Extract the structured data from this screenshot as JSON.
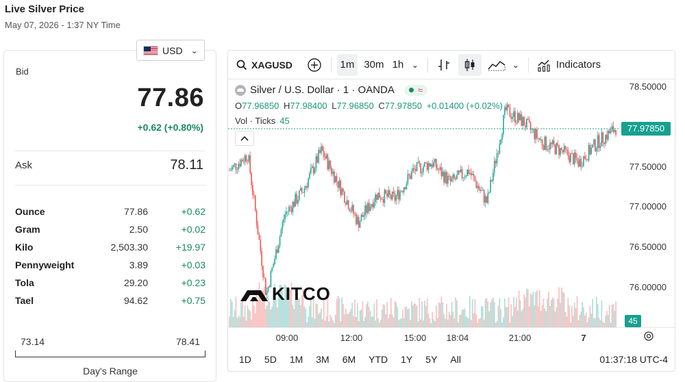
{
  "header": {
    "title": "Live Silver Price",
    "subtitle": "May 07, 2026 - 1:37 NY Time"
  },
  "currency": {
    "selected": "USD",
    "icon": "us-flag-icon"
  },
  "bid": {
    "label": "Bid",
    "value": "77.86",
    "change": "+0.62 (+0.80%)"
  },
  "ask": {
    "label": "Ask",
    "value": "78.11"
  },
  "units": [
    {
      "name": "Ounce",
      "price": "77.86",
      "change": "+0.62"
    },
    {
      "name": "Gram",
      "price": "2.50",
      "change": "+0.02"
    },
    {
      "name": "Kilo",
      "price": "2,503.30",
      "change": "+19.97"
    },
    {
      "name": "Pennyweight",
      "price": "3.89",
      "change": "+0.03"
    },
    {
      "name": "Tola",
      "price": "29.20",
      "change": "+0.23"
    },
    {
      "name": "Tael",
      "price": "94.62",
      "change": "+0.75"
    }
  ],
  "day_range": {
    "low": "73.14",
    "high": "78.41",
    "label": "Day's Range"
  },
  "chart": {
    "toolbar": {
      "symbol": "XAGUSD",
      "intervals": [
        "1m",
        "30m",
        "1h"
      ],
      "active_interval": "1m",
      "indicators_label": "Indicators"
    },
    "legend": {
      "title": "Silver / U.S. Dollar · 1 · OANDA",
      "o_label": "O",
      "o_value": "77.96850",
      "h_label": "H",
      "h_value": "77.98400",
      "l_label": "L",
      "l_value": "77.96850",
      "c_label": "C",
      "c_value": "77.97850",
      "change": "+0.01400 (+0.02%)",
      "vol_label": "Vol · Ticks",
      "vol_value": "45"
    },
    "price_labels": [
      "78.50000",
      "77.50000",
      "77.00000",
      "76.50000",
      "76.00000"
    ],
    "current_price": "77.97850",
    "current_volume": "45",
    "time_labels": [
      "09:00",
      "12:00",
      "15:00",
      "18:04",
      "21:00",
      "7"
    ],
    "ranges": [
      "1D",
      "5D",
      "1M",
      "3M",
      "6M",
      "YTD",
      "1Y",
      "5Y",
      "All"
    ],
    "clock": "01:37:18 UTC-4",
    "watermark": "KITCO",
    "colors": {
      "up": "#26a69a",
      "down": "#ef5350",
      "accent": "#17a090"
    }
  },
  "chart_data": {
    "type": "line",
    "title": "Silver / U.S. Dollar · 1 · OANDA",
    "xlabel": "",
    "ylabel": "",
    "ylim": [
      75.6,
      78.6
    ],
    "x": [
      "07:00",
      "08:00",
      "09:00",
      "10:00",
      "11:00",
      "12:00",
      "13:00",
      "14:00",
      "15:00",
      "16:00",
      "17:00",
      "18:04",
      "19:00",
      "20:00",
      "21:00",
      "21:30",
      "22:00",
      "23:00",
      "00:00",
      "00:30",
      "01:00",
      "01:37"
    ],
    "series": [
      {
        "values": [
          77.45,
          77.65,
          75.9,
          76.9,
          77.2,
          77.7,
          77.25,
          76.8,
          77.15,
          77.1,
          77.45,
          77.55,
          77.3,
          77.45,
          77.05,
          78.2,
          78.05,
          77.8,
          77.7,
          77.55,
          77.8,
          77.98
        ]
      }
    ]
  }
}
